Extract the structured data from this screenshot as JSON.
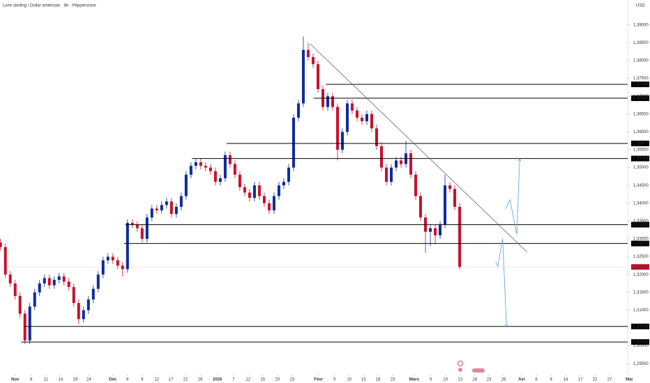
{
  "chart_data": {
    "type": "candlestick",
    "title": "Livre sterling / Dollar américain · 8h · Pepperstone",
    "currency": "USD",
    "up_color": "#0d2b9e",
    "down_color": "#c8102e",
    "xlim": [
      -3.1,
      125.4
    ],
    "ylim": [
      1.292,
      1.397
    ],
    "xticks": [
      {
        "value": 0,
        "label": "Nov"
      },
      {
        "value": 3.3,
        "label": "6"
      },
      {
        "value": 6.3,
        "label": "11"
      },
      {
        "value": 9.3,
        "label": "14"
      },
      {
        "value": 12.3,
        "label": "19"
      },
      {
        "value": 15.1,
        "label": "24"
      },
      {
        "value": 20,
        "label": "Déc"
      },
      {
        "value": 23,
        "label": "6"
      },
      {
        "value": 26,
        "label": "9"
      },
      {
        "value": 29,
        "label": "12"
      },
      {
        "value": 31.9,
        "label": "17"
      },
      {
        "value": 34.9,
        "label": "22"
      },
      {
        "value": 37.9,
        "label": "26"
      },
      {
        "value": 41.4,
        "label": "2026"
      },
      {
        "value": 44.7,
        "label": "7"
      },
      {
        "value": 47.7,
        "label": "12"
      },
      {
        "value": 50.7,
        "label": "15"
      },
      {
        "value": 53.7,
        "label": "20"
      },
      {
        "value": 56.7,
        "label": "23"
      },
      {
        "value": 62.1,
        "label": "Févr"
      },
      {
        "value": 65.4,
        "label": "5"
      },
      {
        "value": 68.4,
        "label": "10"
      },
      {
        "value": 71.3,
        "label": "13"
      },
      {
        "value": 74.3,
        "label": "18"
      },
      {
        "value": 77.3,
        "label": "23"
      },
      {
        "value": 81.7,
        "label": "Mars"
      },
      {
        "value": 85.1,
        "label": "5"
      },
      {
        "value": 88.1,
        "label": "10"
      },
      {
        "value": 91.1,
        "label": "13"
      },
      {
        "value": 94.1,
        "label": "18"
      },
      {
        "value": 97,
        "label": "23"
      },
      {
        "value": 100,
        "label": "26"
      },
      {
        "value": 103.7,
        "label": "Avr"
      },
      {
        "value": 106.7,
        "label": "6"
      },
      {
        "value": 109.7,
        "label": "9"
      },
      {
        "value": 112.7,
        "label": "14"
      },
      {
        "value": 115.7,
        "label": "17"
      },
      {
        "value": 118.7,
        "label": "22"
      },
      {
        "value": 121.7,
        "label": "27"
      },
      {
        "value": 125.7,
        "label": "Mai"
      }
    ],
    "yticks": [
      {
        "value": 1.295,
        "label": "1,29500"
      },
      {
        "value": 1.3,
        "label": "1,30000"
      },
      {
        "value": 1.305,
        "label": "1,30500"
      },
      {
        "value": 1.31,
        "label": "1,31000"
      },
      {
        "value": 1.315,
        "label": "1,31500"
      },
      {
        "value": 1.32,
        "label": "1,32000"
      },
      {
        "value": 1.325,
        "label": "1,32500"
      },
      {
        "value": 1.33,
        "label": "1,33000"
      },
      {
        "value": 1.335,
        "label": "1,33500"
      },
      {
        "value": 1.34,
        "label": "1,34000"
      },
      {
        "value": 1.345,
        "label": "1,34500"
      },
      {
        "value": 1.35,
        "label": "1,35000"
      },
      {
        "value": 1.355,
        "label": "1,35500"
      },
      {
        "value": 1.36,
        "label": "1,36000"
      },
      {
        "value": 1.365,
        "label": "1,36500"
      },
      {
        "value": 1.37,
        "label": "1,37000"
      },
      {
        "value": 1.375,
        "label": "1,37500"
      },
      {
        "value": 1.38,
        "label": "1,38000"
      },
      {
        "value": 1.385,
        "label": "1,38500"
      },
      {
        "value": 1.39,
        "label": "1,39000"
      }
    ],
    "x": [
      -3,
      -2,
      -1,
      0,
      1,
      2,
      3,
      4,
      5,
      6,
      7,
      8,
      9,
      10,
      11,
      12,
      13,
      14,
      15,
      16,
      17,
      18,
      19,
      20,
      21,
      22,
      23,
      24,
      25,
      26,
      27,
      28,
      29,
      30,
      31,
      32,
      33,
      34,
      35,
      36,
      37,
      38,
      39,
      40,
      41,
      42,
      43,
      44,
      45,
      46,
      47,
      48,
      49,
      50,
      51,
      52,
      53,
      54,
      55,
      56,
      57,
      58,
      59,
      60,
      61,
      62,
      63,
      64,
      65,
      66,
      67,
      68,
      69,
      70,
      71,
      72,
      73,
      74,
      75,
      76,
      77,
      78,
      79,
      80,
      81,
      82,
      83,
      84,
      85,
      86,
      87,
      88,
      89,
      90,
      91
    ],
    "open": [
      1.329,
      1.3277,
      1.32,
      1.3175,
      1.314,
      1.309,
      1.3015,
      1.311,
      1.315,
      1.3175,
      1.319,
      1.317,
      1.3185,
      1.3195,
      1.318,
      1.3165,
      1.312,
      1.3075,
      1.31,
      1.313,
      1.316,
      1.32,
      1.324,
      1.325,
      1.324,
      1.3225,
      1.3215,
      1.3345,
      1.334,
      1.333,
      1.33,
      1.336,
      1.3385,
      1.338,
      1.3395,
      1.3405,
      1.337,
      1.339,
      1.342,
      1.348,
      1.3505,
      1.3515,
      1.3505,
      1.35,
      1.349,
      1.346,
      1.347,
      1.3535,
      1.351,
      1.348,
      1.3445,
      1.343,
      1.3415,
      1.345,
      1.342,
      1.34,
      1.338,
      1.342,
      1.345,
      1.346,
      1.35,
      1.364,
      1.368,
      1.383,
      1.381,
      1.379,
      1.372,
      1.367,
      1.37,
      1.367,
      1.355,
      1.36,
      1.368,
      1.366,
      1.364,
      1.363,
      1.365,
      1.361,
      1.356,
      1.35,
      1.346,
      1.35,
      1.352,
      1.351,
      1.354,
      1.348,
      1.342,
      1.336,
      1.332,
      1.333,
      1.331,
      1.334,
      1.345,
      1.344,
      1.339
    ],
    "high": [
      1.33,
      1.3287,
      1.321,
      1.3185,
      1.315,
      1.31,
      1.312,
      1.316,
      1.3185,
      1.32,
      1.32,
      1.3195,
      1.3205,
      1.3205,
      1.319,
      1.3175,
      1.313,
      1.311,
      1.314,
      1.317,
      1.321,
      1.325,
      1.326,
      1.326,
      1.325,
      1.3235,
      1.3355,
      1.3355,
      1.335,
      1.334,
      1.337,
      1.3395,
      1.3395,
      1.3405,
      1.3415,
      1.3415,
      1.34,
      1.343,
      1.349,
      1.3515,
      1.3525,
      1.3525,
      1.3515,
      1.351,
      1.35,
      1.348,
      1.3545,
      1.3545,
      1.352,
      1.349,
      1.3455,
      1.344,
      1.346,
      1.346,
      1.343,
      1.341,
      1.343,
      1.346,
      1.347,
      1.351,
      1.365,
      1.369,
      1.3868,
      1.385,
      1.382,
      1.38,
      1.373,
      1.371,
      1.371,
      1.368,
      1.361,
      1.369,
      1.369,
      1.367,
      1.365,
      1.366,
      1.366,
      1.362,
      1.357,
      1.351,
      1.351,
      1.353,
      1.353,
      1.3575,
      1.355,
      1.349,
      1.343,
      1.337,
      1.334,
      1.334,
      1.335,
      1.348,
      1.346,
      1.345,
      1.34
    ],
    "low": [
      1.3267,
      1.319,
      1.3165,
      1.313,
      1.308,
      1.3005,
      1.3005,
      1.31,
      1.314,
      1.3165,
      1.316,
      1.316,
      1.3175,
      1.317,
      1.3155,
      1.311,
      1.306,
      1.3065,
      1.309,
      1.312,
      1.315,
      1.319,
      1.323,
      1.323,
      1.3215,
      1.3195,
      1.3205,
      1.333,
      1.332,
      1.329,
      1.329,
      1.335,
      1.337,
      1.337,
      1.3385,
      1.336,
      1.336,
      1.338,
      1.341,
      1.347,
      1.3495,
      1.3495,
      1.349,
      1.348,
      1.345,
      1.345,
      1.346,
      1.35,
      1.347,
      1.3435,
      1.342,
      1.3405,
      1.3405,
      1.341,
      1.339,
      1.337,
      1.337,
      1.341,
      1.344,
      1.345,
      1.349,
      1.363,
      1.367,
      1.38,
      1.378,
      1.371,
      1.366,
      1.366,
      1.366,
      1.352,
      1.354,
      1.359,
      1.365,
      1.363,
      1.362,
      1.362,
      1.36,
      1.355,
      1.349,
      1.345,
      1.345,
      1.349,
      1.35,
      1.35,
      1.347,
      1.341,
      1.335,
      1.326,
      1.328,
      1.3285,
      1.33,
      1.333,
      1.343,
      1.338,
      1.3215
    ],
    "close": [
      1.3277,
      1.32,
      1.3175,
      1.314,
      1.309,
      1.3015,
      1.311,
      1.315,
      1.3175,
      1.319,
      1.317,
      1.3185,
      1.3195,
      1.318,
      1.3165,
      1.312,
      1.3075,
      1.31,
      1.313,
      1.316,
      1.32,
      1.324,
      1.325,
      1.324,
      1.3225,
      1.3215,
      1.3345,
      1.334,
      1.333,
      1.33,
      1.336,
      1.3385,
      1.338,
      1.3395,
      1.3405,
      1.337,
      1.339,
      1.342,
      1.348,
      1.3505,
      1.3515,
      1.3505,
      1.35,
      1.349,
      1.346,
      1.347,
      1.3535,
      1.351,
      1.348,
      1.3445,
      1.343,
      1.3415,
      1.345,
      1.342,
      1.34,
      1.338,
      1.342,
      1.345,
      1.346,
      1.35,
      1.364,
      1.368,
      1.383,
      1.381,
      1.379,
      1.372,
      1.367,
      1.37,
      1.367,
      1.355,
      1.36,
      1.368,
      1.366,
      1.364,
      1.363,
      1.365,
      1.361,
      1.356,
      1.35,
      1.346,
      1.35,
      1.352,
      1.351,
      1.354,
      1.348,
      1.342,
      1.336,
      1.332,
      1.333,
      1.331,
      1.334,
      1.345,
      1.344,
      1.339,
      1.32213
    ],
    "levels": [
      {
        "value": 1.37334,
        "label": "1,37334",
        "x_start": 63.6
      },
      {
        "value": 1.36945,
        "label": "1,36945",
        "x_start": 61.1
      },
      {
        "value": 1.35677,
        "label": "1,35677",
        "x_start": 43.3
      },
      {
        "value": 1.35254,
        "label": "1,35254",
        "x_start": 36.2
      },
      {
        "value": 1.33399,
        "label": "1,33399",
        "x_start": 22.6
      },
      {
        "value": 1.32871,
        "label": "1,32871",
        "x_start": 22.3
      },
      {
        "value": 1.30544,
        "label": "1,30544",
        "x_start": 1.9
      },
      {
        "value": 1.30108,
        "label": "1,30108",
        "x_start": 1.2
      }
    ],
    "last_price": {
      "value": 1.32213,
      "label": "1,32213"
    },
    "trendline": {
      "x": [
        60.4,
        104.8
      ],
      "y": [
        1.3847,
        1.3263
      ]
    },
    "projections": [
      {
        "x": [
          100.4,
          101.3,
          102.7,
          103.3
        ],
        "y": [
          1.33844,
          1.34098,
          1.33121,
          1.3525
        ]
      },
      {
        "x": [
          98.4,
          98.8,
          99.8,
          100.6
        ],
        "y": [
          1.32359,
          1.32223,
          1.33004,
          1.30523
        ]
      }
    ],
    "projection_color": "#6fa8dc"
  }
}
